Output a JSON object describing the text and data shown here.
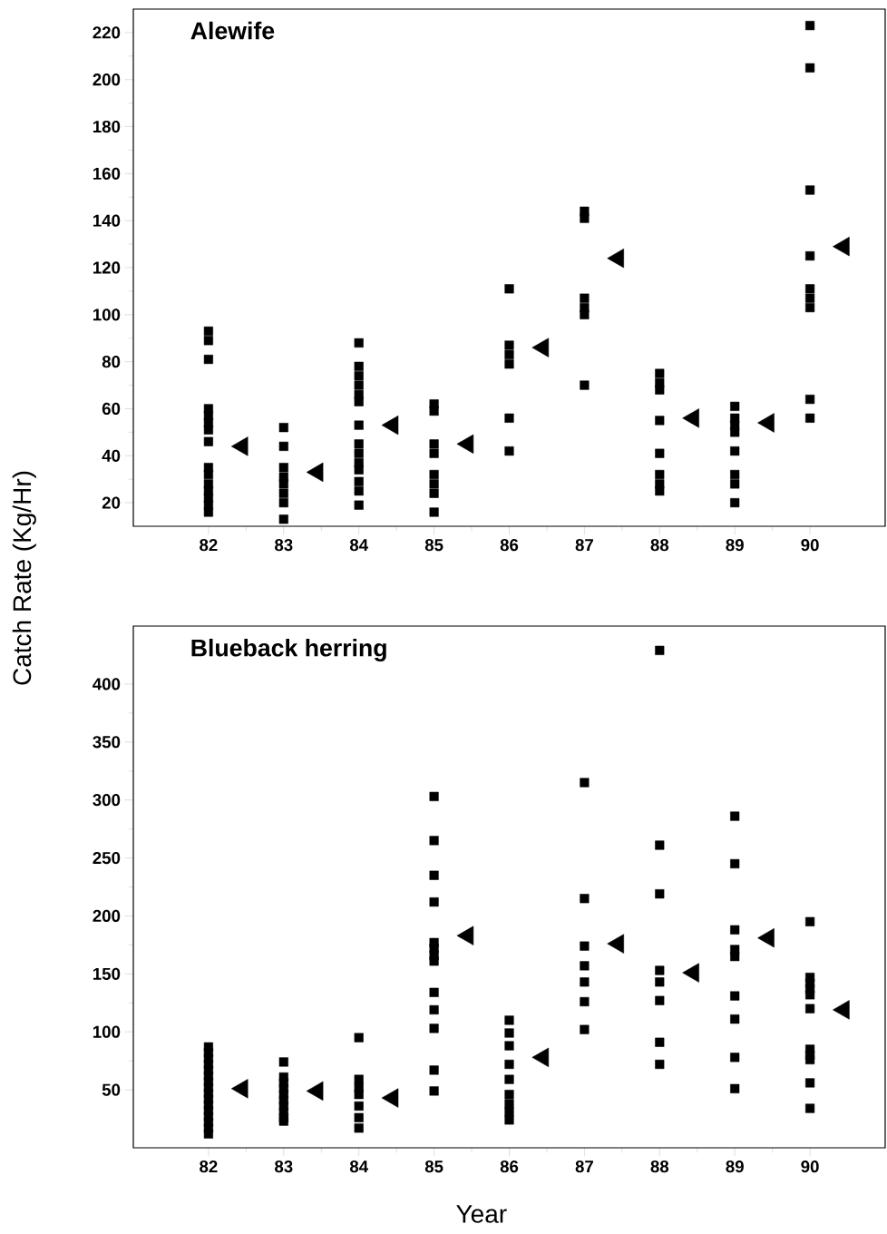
{
  "chart_data": [
    {
      "type": "scatter",
      "title": "Alewife",
      "ylabel": "Catch Rate (Kg/Hr)",
      "xlim": [
        81,
        91
      ],
      "ylim": [
        10,
        230
      ],
      "xticks": [
        82,
        83,
        84,
        85,
        86,
        87,
        88,
        89,
        90
      ],
      "yticks": [
        20,
        40,
        60,
        80,
        100,
        120,
        140,
        160,
        180,
        200,
        220
      ],
      "series": [
        {
          "color": "#000000",
          "marker": "square",
          "x": [
            82,
            82,
            82,
            82,
            82,
            82,
            82,
            82,
            82,
            82,
            82,
            82,
            82,
            82,
            82,
            83,
            83,
            83,
            83,
            83,
            83,
            83,
            83,
            84,
            84,
            84,
            84,
            84,
            84,
            84,
            84,
            84,
            84,
            84,
            84,
            84,
            84,
            85,
            85,
            85,
            85,
            85,
            85,
            85,
            85,
            86,
            86,
            86,
            86,
            86,
            86,
            87,
            87,
            87,
            87,
            87,
            87,
            88,
            88,
            88,
            88,
            88,
            88,
            88,
            88,
            89,
            89,
            89,
            89,
            89,
            89,
            89,
            89,
            90,
            90,
            90,
            90,
            90,
            90,
            90,
            90,
            90
          ],
          "values": [
            93,
            89,
            81,
            60,
            57,
            54,
            51,
            46,
            35,
            32,
            28,
            25,
            22,
            19,
            16,
            52,
            44,
            35,
            31,
            28,
            24,
            20,
            13,
            88,
            78,
            74,
            70,
            66,
            63,
            53,
            45,
            41,
            37,
            34,
            29,
            25,
            19,
            62,
            59,
            45,
            41,
            32,
            28,
            24,
            16,
            111,
            87,
            83,
            79,
            56,
            42,
            144,
            141,
            107,
            103,
            100,
            70,
            75,
            71,
            68,
            55,
            41,
            32,
            28,
            25,
            61,
            56,
            53,
            50,
            42,
            32,
            28,
            20,
            223,
            205,
            153,
            125,
            111,
            107,
            103,
            64,
            56
          ]
        },
        {
          "color": "#000000",
          "marker": "triangle",
          "x": [
            82.45,
            83.45,
            84.45,
            85.45,
            86.45,
            87.45,
            88.45,
            89.45,
            90.45
          ],
          "values": [
            44,
            33,
            53,
            45,
            86,
            124,
            56,
            54,
            129
          ]
        }
      ]
    },
    {
      "type": "scatter",
      "title": "Blueback herring",
      "xlabel": "Year",
      "xlim": [
        81,
        91
      ],
      "ylim": [
        0,
        450
      ],
      "xticks": [
        82,
        83,
        84,
        85,
        86,
        87,
        88,
        89,
        90
      ],
      "yticks": [
        50,
        100,
        150,
        200,
        250,
        300,
        350,
        400
      ],
      "series": [
        {
          "color": "#000000",
          "marker": "square",
          "x": [
            82,
            82,
            82,
            82,
            82,
            82,
            82,
            82,
            82,
            82,
            82,
            82,
            82,
            82,
            82,
            82,
            83,
            83,
            83,
            83,
            83,
            83,
            83,
            83,
            83,
            83,
            84,
            84,
            84,
            84,
            84,
            84,
            84,
            85,
            85,
            85,
            85,
            85,
            85,
            85,
            85,
            85,
            85,
            85,
            85,
            85,
            86,
            86,
            86,
            86,
            86,
            86,
            86,
            86,
            86,
            87,
            87,
            87,
            87,
            87,
            87,
            87,
            88,
            88,
            88,
            88,
            88,
            88,
            88,
            88,
            89,
            89,
            89,
            89,
            89,
            89,
            89,
            89,
            89,
            90,
            90,
            90,
            90,
            90,
            90,
            90,
            90,
            90,
            90,
            90
          ],
          "values": [
            87,
            82,
            77,
            72,
            67,
            62,
            57,
            52,
            47,
            42,
            37,
            32,
            27,
            22,
            17,
            12,
            74,
            61,
            56,
            51,
            46,
            41,
            36,
            31,
            26,
            23,
            95,
            59,
            52,
            46,
            36,
            26,
            17,
            303,
            265,
            235,
            212,
            177,
            172,
            166,
            161,
            134,
            119,
            103,
            67,
            49,
            110,
            99,
            88,
            72,
            59,
            46,
            38,
            31,
            24,
            315,
            215,
            174,
            157,
            143,
            126,
            102,
            429,
            261,
            219,
            153,
            143,
            127,
            91,
            72,
            286,
            245,
            188,
            171,
            165,
            131,
            111,
            78,
            51,
            195,
            147,
            142,
            137,
            132,
            120,
            85,
            80,
            76,
            56,
            34
          ]
        },
        {
          "color": "#000000",
          "marker": "triangle",
          "x": [
            82.45,
            83.45,
            84.45,
            85.45,
            86.45,
            87.45,
            88.45,
            89.45,
            90.45
          ],
          "values": [
            51,
            49,
            43,
            183,
            78,
            176,
            151,
            181,
            119
          ]
        }
      ]
    }
  ]
}
